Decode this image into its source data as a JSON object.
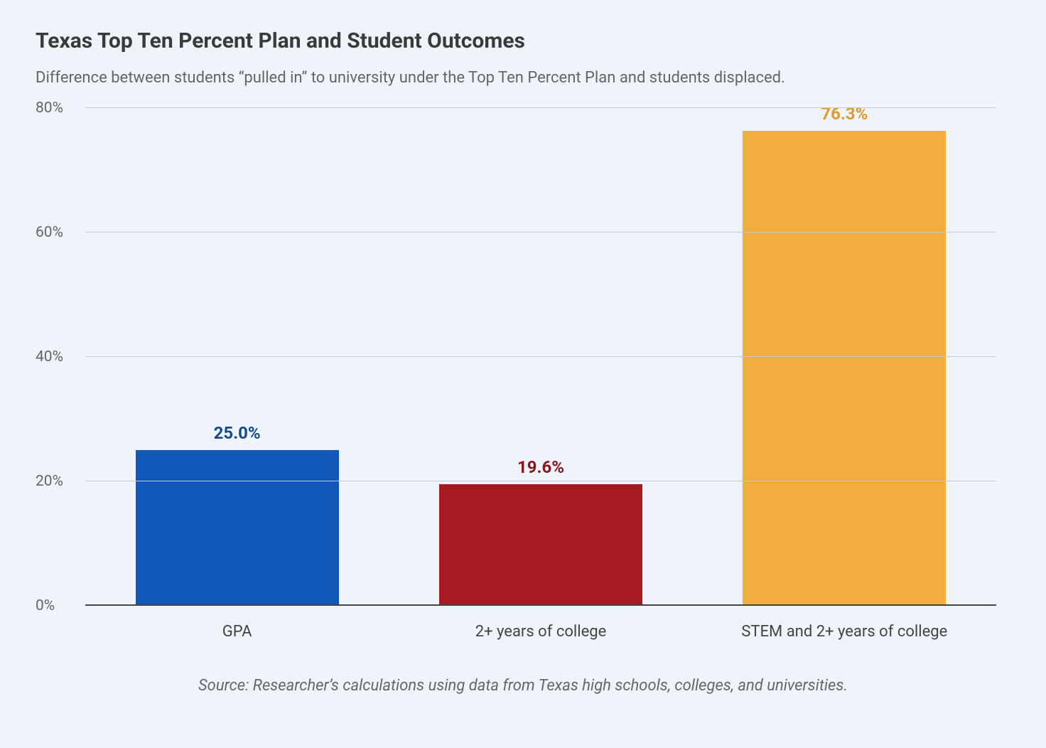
{
  "chart": {
    "type": "bar",
    "title": "Texas Top Ten Percent Plan and Student Outcomes",
    "title_fontsize": 30,
    "title_color": "#3a3a3a",
    "subtitle": "Difference between students “pulled in” to university under the Top Ten Percent Plan and students displaced.",
    "subtitle_fontsize": 22,
    "subtitle_color": "#666666",
    "background_color": "#eff4fa",
    "grid_color": "#c5cbd3",
    "baseline_color": "#444444",
    "ylim": [
      0,
      80
    ],
    "ytick_step": 20,
    "yticks": [
      {
        "value": 0,
        "label": "0%"
      },
      {
        "value": 20,
        "label": "20%"
      },
      {
        "value": 40,
        "label": "40%"
      },
      {
        "value": 60,
        "label": "60%"
      },
      {
        "value": 80,
        "label": "80%"
      }
    ],
    "tick_fontsize": 21,
    "bar_width_ratio": 0.67,
    "categories": [
      "GPA",
      "2+ years of college",
      "STEM and 2+ years of college"
    ],
    "bars": [
      {
        "category": "GPA",
        "value": 25.0,
        "display_label": "25.0%",
        "bar_color": "#1257b8",
        "label_color": "#134b8e"
      },
      {
        "category": "2+ years of college",
        "value": 19.6,
        "display_label": "19.6%",
        "bar_color": "#a71a1f",
        "label_color": "#8a1519"
      },
      {
        "category": "STEM and 2+ years of college",
        "value": 76.3,
        "display_label": "76.3%",
        "bar_color": "#f1ae3c",
        "label_color": "#e09a2a"
      }
    ],
    "value_label_fontsize": 24,
    "xtick_fontsize": 22,
    "source": "Source: Researcher’s calculations using data from Texas high schools, colleges, and universities.",
    "source_fontsize": 22
  }
}
